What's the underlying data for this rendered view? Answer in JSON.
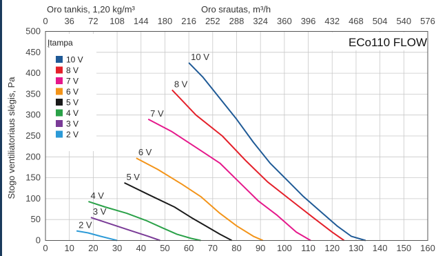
{
  "chart_data": {
    "type": "line",
    "model_label": "ECo110 FLOW",
    "top_note": "Oro tankis, 1,20 kg/m³",
    "x_top_label": "Oro srautas, m³/h",
    "ylabel": "Stogo ventiliatoriaus slėgis, Pa",
    "legend_title": "Įtampa",
    "legend_placement": "top-left",
    "grid": true,
    "xlim": [
      0,
      160
    ],
    "ylim": [
      0,
      500
    ],
    "x_ticks": [
      "0",
      "10",
      "20",
      "30",
      "40",
      "50",
      "60",
      "70",
      "80",
      "90",
      "100",
      "110",
      "120",
      "130",
      "140",
      "150",
      "160"
    ],
    "x_top_ticks": [
      "0",
      "36",
      "72",
      "108",
      "144",
      "180",
      "216",
      "252",
      "288",
      "324",
      "360",
      "396",
      "432",
      "468",
      "504",
      "540",
      "576"
    ],
    "y_ticks": [
      "0",
      "50",
      "100",
      "150",
      "200",
      "250",
      "300",
      "350",
      "400",
      "450",
      "500"
    ],
    "series": [
      {
        "name": "10 V",
        "color": "#1f5a96",
        "x": [
          60,
          66,
          73,
          80,
          87,
          94,
          101,
          108,
          115,
          122,
          128,
          134
        ],
        "y": [
          425,
          390,
          340,
          290,
          235,
          185,
          145,
          105,
          70,
          35,
          10,
          0
        ]
      },
      {
        "name": "8 V",
        "color": "#e4202a",
        "x": [
          53,
          63,
          74,
          84,
          93,
          103,
          112,
          120,
          125
        ],
        "y": [
          360,
          300,
          250,
          190,
          140,
          95,
          55,
          20,
          0
        ]
      },
      {
        "name": "7 V",
        "color": "#e5188b",
        "x": [
          43,
          53,
          65,
          73,
          81,
          89,
          97,
          105,
          111
        ],
        "y": [
          290,
          260,
          215,
          185,
          140,
          95,
          60,
          20,
          0
        ]
      },
      {
        "name": "6 V",
        "color": "#f39419",
        "x": [
          38,
          47,
          57,
          65,
          73,
          80,
          87,
          91
        ],
        "y": [
          197,
          170,
          135,
          105,
          65,
          35,
          10,
          0
        ]
      },
      {
        "name": "5 V",
        "color": "#1a1a1a",
        "x": [
          33,
          43,
          54,
          61,
          67,
          73,
          78
        ],
        "y": [
          138,
          110,
          80,
          55,
          35,
          15,
          0
        ]
      },
      {
        "name": "4 V",
        "color": "#2aa148",
        "x": [
          18,
          25,
          34,
          42,
          49,
          55,
          61,
          65
        ],
        "y": [
          93,
          80,
          65,
          48,
          30,
          15,
          5,
          0
        ]
      },
      {
        "name": "3 V",
        "color": "#7a3b97",
        "x": [
          19,
          27,
          35,
          43,
          48
        ],
        "y": [
          55,
          40,
          25,
          10,
          0
        ]
      },
      {
        "name": "2 V",
        "color": "#2c9ad7",
        "x": [
          13,
          18,
          23,
          28,
          30
        ],
        "y": [
          23,
          18,
          10,
          3,
          0
        ]
      }
    ]
  }
}
